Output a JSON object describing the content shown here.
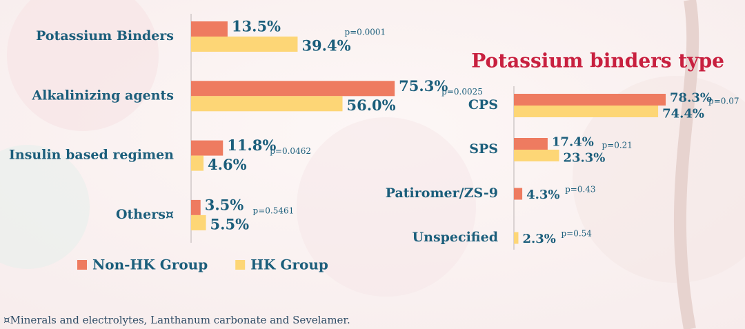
{
  "chart_data": [
    {
      "type": "bar",
      "orientation": "horizontal",
      "categories": [
        "Potassium Binders",
        "Alkalinizing agents",
        "Insulin based regimen",
        "Others¤"
      ],
      "series": [
        {
          "name": "Non-HK Group",
          "color": "#ee7b60",
          "values": [
            13.5,
            75.3,
            11.8,
            3.5
          ],
          "value_labels": [
            "13.5%",
            "75.3%",
            "11.8%",
            "3.5%"
          ]
        },
        {
          "name": "HK Group",
          "color": "#fdd676",
          "values": [
            39.4,
            56.0,
            4.6,
            5.5
          ],
          "value_labels": [
            "39.4%",
            "56.0%",
            "4.6%",
            "5.5%"
          ]
        }
      ],
      "annotations": [
        "p=0.0001",
        "p=0.0025",
        "p=0.0462",
        "p=0.5461"
      ],
      "xlim": [
        0,
        100
      ],
      "legend": "bottom"
    },
    {
      "type": "bar",
      "orientation": "horizontal",
      "title": "Potassium binders type",
      "categories": [
        "CPS",
        "SPS",
        "Patiromer/ZS-9",
        "Unspecified"
      ],
      "series": [
        {
          "name": "Non-HK Group",
          "color": "#ee7b60",
          "values": [
            78.3,
            17.4,
            4.3,
            null
          ],
          "value_labels": [
            "78.3%",
            "17.4%",
            "4.3%",
            null
          ]
        },
        {
          "name": "HK Group",
          "color": "#fdd676",
          "values": [
            74.4,
            23.3,
            null,
            2.3
          ],
          "value_labels": [
            "74.4%",
            "23.3%",
            null,
            "2.3%"
          ]
        }
      ],
      "annotations": [
        "p=0.07",
        "p=0.21",
        "p=0.43",
        "p=0.54"
      ],
      "xlim": [
        0,
        100
      ],
      "legend": "none"
    }
  ],
  "footnote": "¤Minerals and electrolytes, Lanthanum carbonate and Sevelamer."
}
